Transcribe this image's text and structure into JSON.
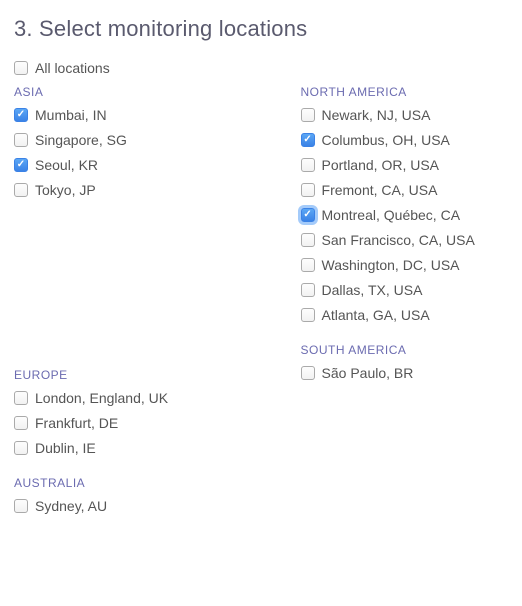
{
  "heading": "3. Select monitoring locations",
  "allLocations": {
    "label": "All locations",
    "checked": false,
    "focused": false
  },
  "leftColumn": [
    {
      "title": "ASIA",
      "items": [
        {
          "label": "Mumbai, IN",
          "checked": true,
          "focused": false
        },
        {
          "label": "Singapore, SG",
          "checked": false,
          "focused": false
        },
        {
          "label": "Seoul, KR",
          "checked": true,
          "focused": false
        },
        {
          "label": "Tokyo, JP",
          "checked": false,
          "focused": false
        }
      ]
    },
    {
      "title": "EUROPE",
      "items": [
        {
          "label": "London, England, UK",
          "checked": false,
          "focused": false
        },
        {
          "label": "Frankfurt, DE",
          "checked": false,
          "focused": false
        },
        {
          "label": "Dublin, IE",
          "checked": false,
          "focused": false
        }
      ]
    },
    {
      "title": "AUSTRALIA",
      "items": [
        {
          "label": "Sydney, AU",
          "checked": false,
          "focused": false
        }
      ]
    }
  ],
  "rightColumn": [
    {
      "title": "NORTH AMERICA",
      "items": [
        {
          "label": "Newark, NJ, USA",
          "checked": false,
          "focused": false
        },
        {
          "label": "Columbus, OH, USA",
          "checked": true,
          "focused": false
        },
        {
          "label": "Portland, OR, USA",
          "checked": false,
          "focused": false
        },
        {
          "label": "Fremont, CA, USA",
          "checked": false,
          "focused": false
        },
        {
          "label": "Montreal, Québec, CA",
          "checked": true,
          "focused": true
        },
        {
          "label": "San Francisco, CA, USA",
          "checked": false,
          "focused": false
        },
        {
          "label": "Washington, DC, USA",
          "checked": false,
          "focused": false
        },
        {
          "label": "Dallas, TX, USA",
          "checked": false,
          "focused": false
        },
        {
          "label": "Atlanta, GA, USA",
          "checked": false,
          "focused": false
        }
      ]
    },
    {
      "title": "SOUTH AMERICA",
      "items": [
        {
          "label": "São Paulo, BR",
          "checked": false,
          "focused": false
        }
      ]
    }
  ],
  "colors": {
    "heading": "#5a5a6e",
    "regionHeader": "#6b6bb0",
    "text": "#555555",
    "checkboxChecked": "#3b82e6",
    "focusRing": "rgba(90,160,245,0.55)",
    "background": "#ffffff"
  },
  "spacing": {
    "leftRegionGapAfterAsia": 170
  }
}
